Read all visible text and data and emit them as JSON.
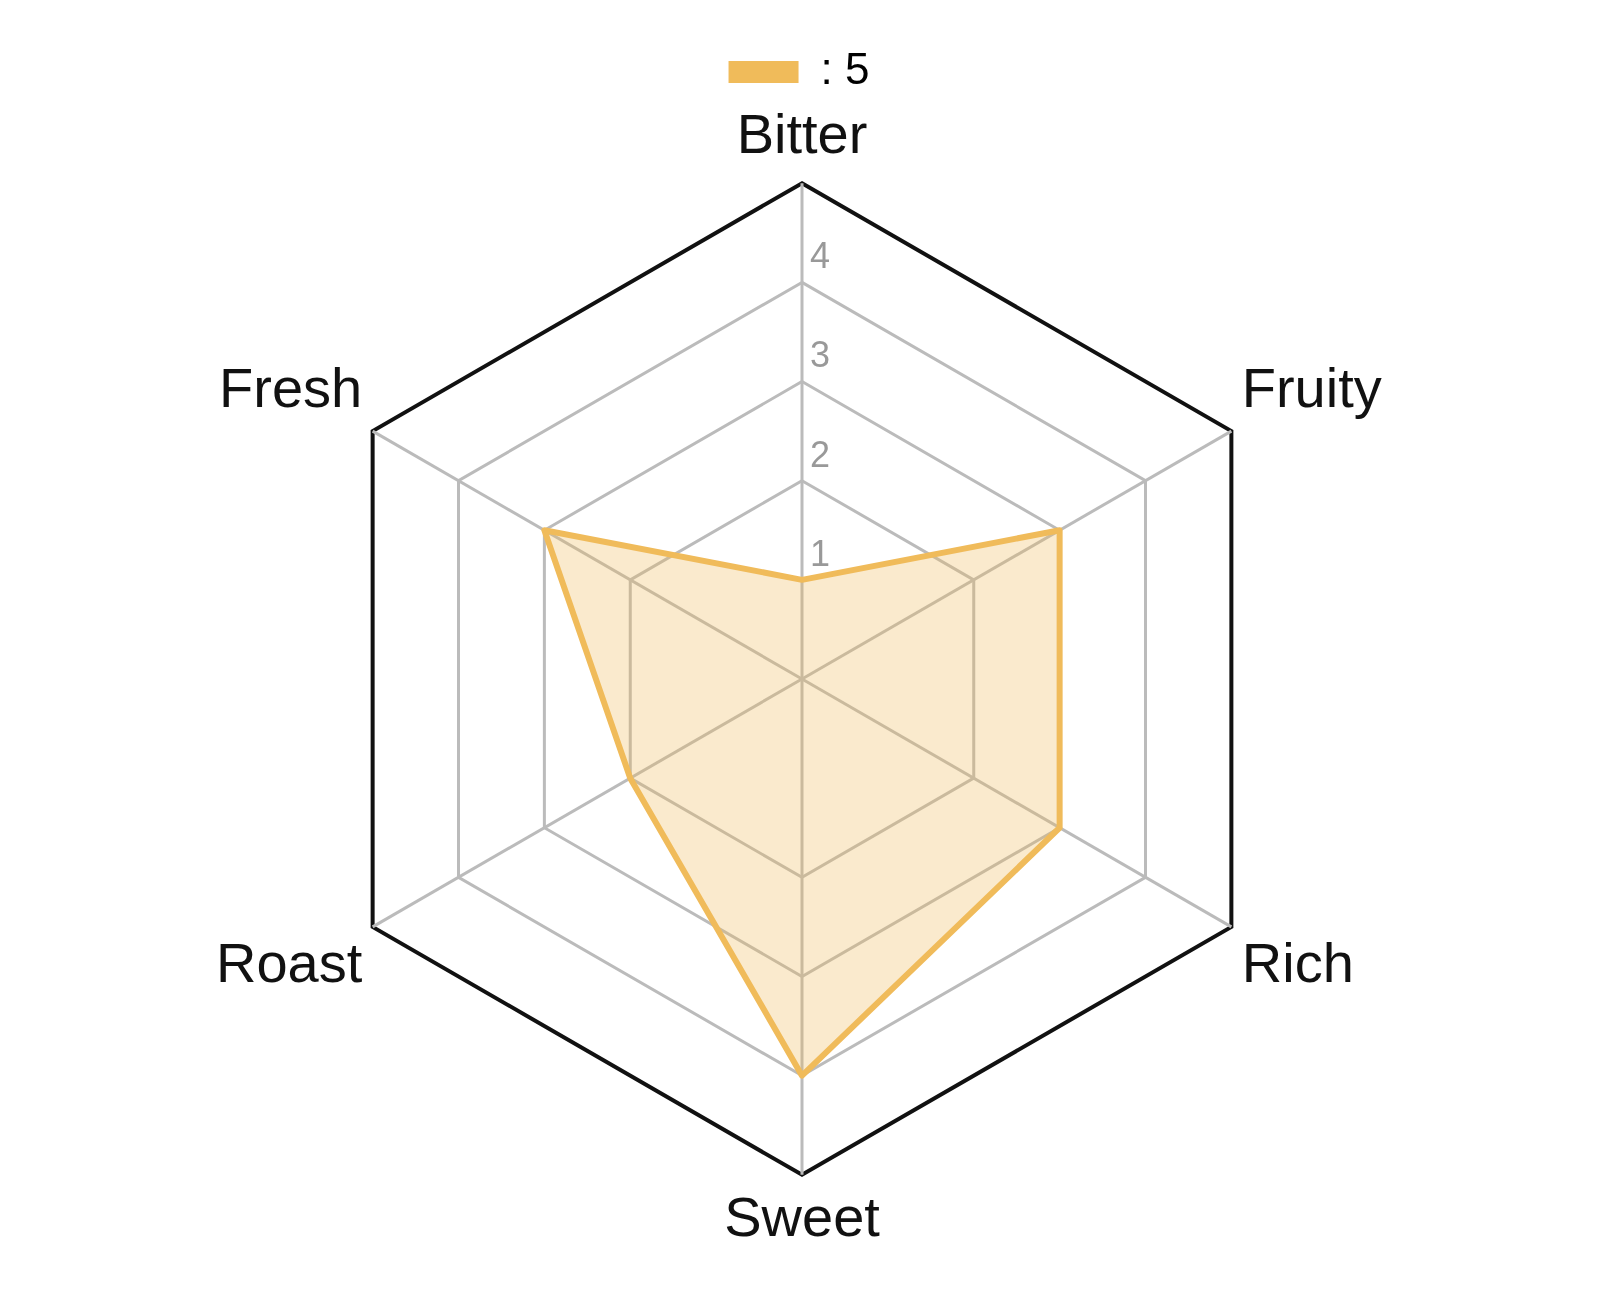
{
  "chart_data": {
    "type": "radar",
    "categories": [
      "Bitter",
      "Fruity",
      "Rich",
      "Sweet",
      "Roast",
      "Fresh"
    ],
    "series": [
      {
        "name": ": 5",
        "color": "#f0bb5a",
        "values": [
          1,
          3,
          3,
          4,
          2,
          3
        ]
      }
    ],
    "ylim": [
      0,
      5
    ],
    "yticks": [
      1,
      2,
      3,
      4
    ],
    "grid": true,
    "legend": "top"
  }
}
